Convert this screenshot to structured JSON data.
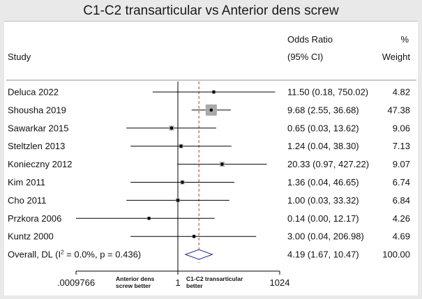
{
  "title": "C1-C2 transarticular vs Anterior dens screw",
  "header": {
    "study": "Study",
    "or_line1": "Odds Ratio",
    "or_line2": "(95% CI)",
    "wt_line1": "%",
    "wt_line2": "Weight"
  },
  "colors": {
    "ci_line": "#000000",
    "weight_box": "#a9a9a9",
    "overall_diamond": "#1f2c8f",
    "overall_line": "#c0392b"
  },
  "chart_data": {
    "type": "forest",
    "x_scale": "log",
    "xlim": [
      0.0009766,
      1024
    ],
    "ticks": [
      {
        "value": 0.0009766,
        "label": ".0009766"
      },
      {
        "value": 1,
        "label": "1"
      },
      {
        "value": 1024,
        "label": "1024"
      }
    ],
    "null_value": 1,
    "overall_value": 4.19,
    "left_caption": [
      "Anterior dens",
      "screw better"
    ],
    "right_caption": [
      "C1-C2 transarticular",
      "better"
    ],
    "studies": [
      {
        "label": "Deluca 2022",
        "or": 11.5,
        "lo": 0.18,
        "hi": 750.02,
        "or_text": "11.50 (0.18, 750.02)",
        "weight": 4.82,
        "weight_text": "4.82"
      },
      {
        "label": "Shousha 2019",
        "or": 9.68,
        "lo": 2.55,
        "hi": 36.68,
        "or_text": "9.68 (2.55, 36.68)",
        "weight": 47.38,
        "weight_text": "47.38"
      },
      {
        "label": "Sawarkar 2015",
        "or": 0.65,
        "lo": 0.03,
        "hi": 13.62,
        "or_text": "0.65 (0.03, 13.62)",
        "weight": 9.06,
        "weight_text": "9.06"
      },
      {
        "label": "Steltzlen 2013",
        "or": 1.24,
        "lo": 0.04,
        "hi": 38.3,
        "or_text": "1.24 (0.04, 38.30)",
        "weight": 7.13,
        "weight_text": "7.13"
      },
      {
        "label": "Konieczny 2012",
        "or": 20.33,
        "lo": 0.97,
        "hi": 427.22,
        "or_text": "20.33 (0.97, 427.22)",
        "weight": 9.07,
        "weight_text": "9.07"
      },
      {
        "label": "Kim 2011",
        "or": 1.36,
        "lo": 0.04,
        "hi": 46.65,
        "or_text": "1.36 (0.04, 46.65)",
        "weight": 6.74,
        "weight_text": "6.74"
      },
      {
        "label": "Cho 2011",
        "or": 1.0,
        "lo": 0.03,
        "hi": 33.32,
        "or_text": "1.00 (0.03, 33.32)",
        "weight": 6.84,
        "weight_text": "6.84"
      },
      {
        "label": "Przkora 2006",
        "or": 0.14,
        "lo": 0.0,
        "hi": 12.17,
        "or_text": "0.14 (0.00, 12.17)",
        "weight": 4.26,
        "weight_text": "4.26"
      },
      {
        "label": "Kuntz 2000",
        "or": 3.0,
        "lo": 0.04,
        "hi": 206.98,
        "or_text": "3.00 (0.04, 206.98)",
        "weight": 4.69,
        "weight_text": "4.69"
      }
    ],
    "overall": {
      "label_prefix": "Overall, DL (I",
      "label_sup": "2",
      "label_suffix": " = 0.0%, p = 0.436)",
      "or": 4.19,
      "lo": 1.67,
      "hi": 10.47,
      "or_text": "4.19 (1.67, 10.47)",
      "weight_text": "100.00"
    }
  }
}
